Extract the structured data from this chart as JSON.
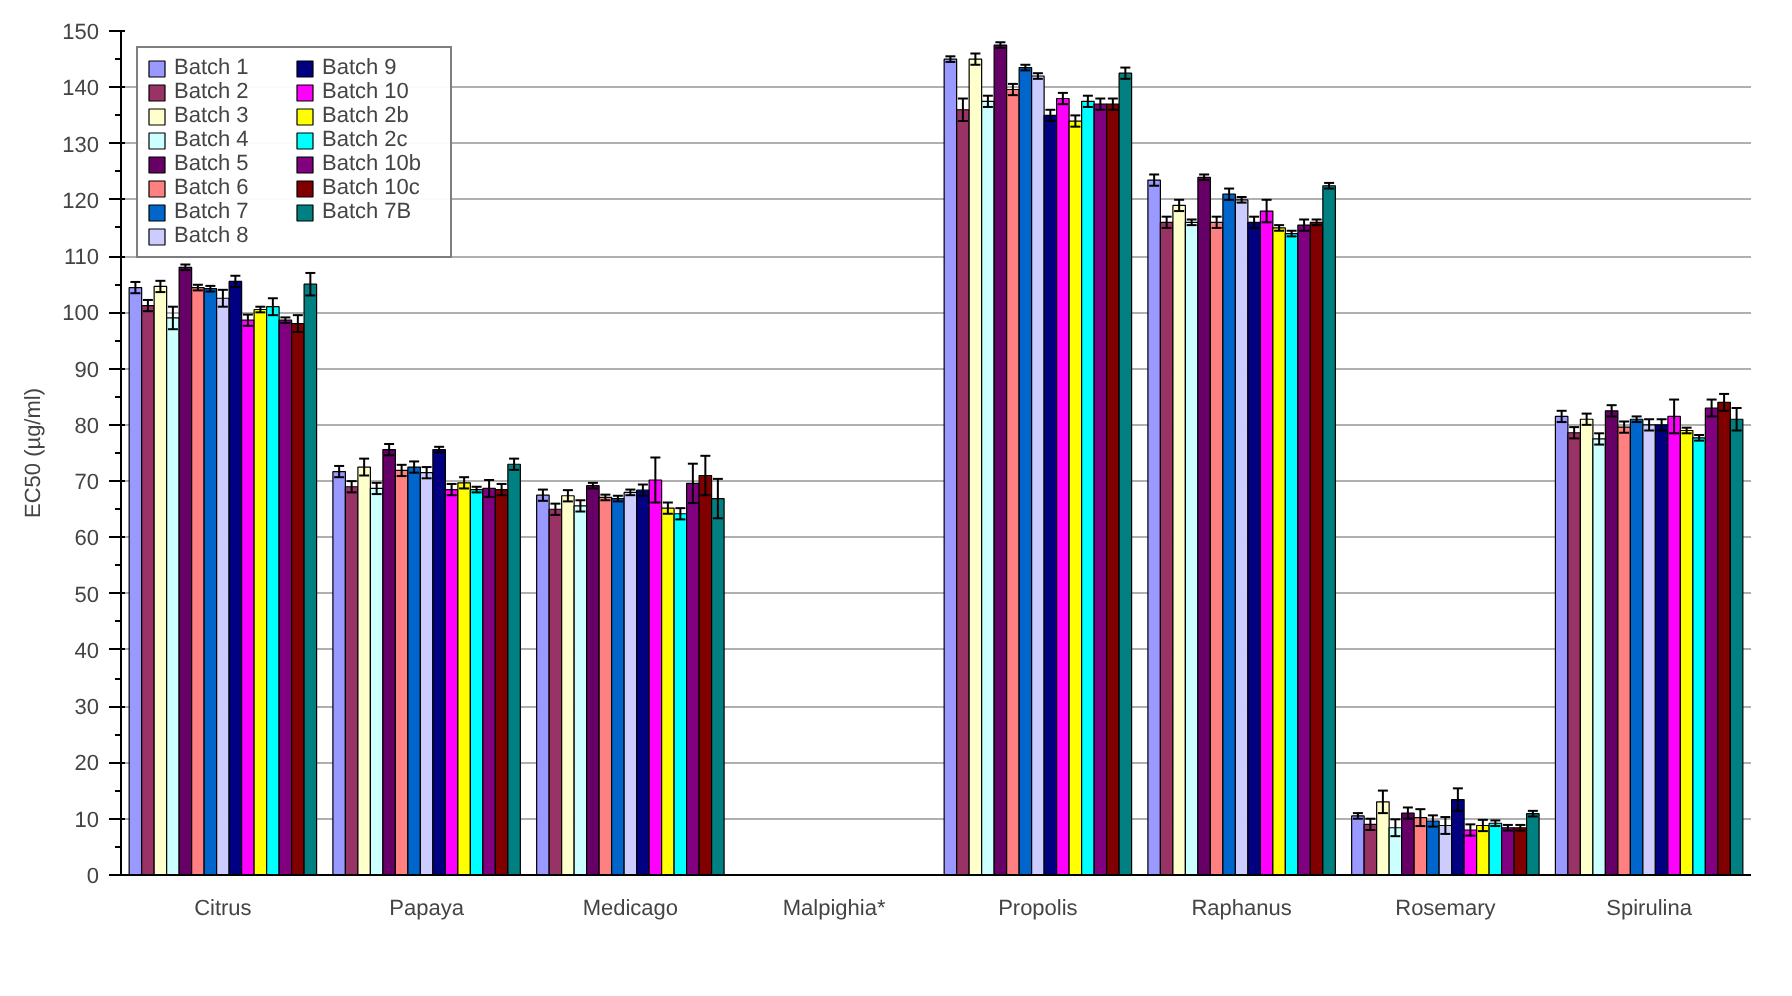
{
  "chart_data": {
    "type": "bar",
    "ylabel": "EC50 (µg/ml)",
    "categories": [
      "Citrus",
      "Papaya",
      "Medicago",
      "Malpighia*",
      "Propolis",
      "Raphanus",
      "Rosemary",
      "Spirulina"
    ],
    "ylim": [
      0,
      150
    ],
    "yticks": [
      0,
      10,
      20,
      30,
      40,
      50,
      60,
      70,
      80,
      90,
      100,
      110,
      120,
      130,
      140,
      150
    ],
    "grid": "y",
    "legend": "top left",
    "series": [
      {
        "name": "Batch 1",
        "color": "#9999ff",
        "values": [
          104.4,
          71.7,
          67.5,
          null,
          145,
          123.5,
          10.5,
          81.5
        ],
        "errors": [
          1,
          1,
          1,
          null,
          0.5,
          1,
          0.5,
          1
        ]
      },
      {
        "name": "Batch 2",
        "color": "#993366",
        "values": [
          101.2,
          69,
          65,
          null,
          136,
          116,
          9,
          78.6
        ],
        "errors": [
          1,
          1,
          1,
          null,
          2,
          1,
          1,
          1
        ]
      },
      {
        "name": "Batch 3",
        "color": "#ffffcc",
        "values": [
          104.6,
          72.5,
          67.4,
          null,
          145,
          119,
          13,
          81
        ],
        "errors": [
          1,
          1.5,
          1,
          null,
          1,
          1,
          2,
          1
        ]
      },
      {
        "name": "Batch 4",
        "color": "#ccffff",
        "values": [
          99,
          68.7,
          65.6,
          null,
          137.5,
          116,
          8.4,
          77.5
        ],
        "errors": [
          2,
          1,
          1,
          null,
          1,
          0.5,
          1.5,
          1
        ]
      },
      {
        "name": "Batch 5",
        "color": "#660066",
        "values": [
          108,
          75.6,
          69.2,
          null,
          147.5,
          124,
          11,
          82.5
        ],
        "errors": [
          0.5,
          1,
          0.5,
          null,
          0.5,
          0.5,
          1,
          1
        ]
      },
      {
        "name": "Batch 6",
        "color": "#ff8080",
        "values": [
          104.4,
          71.9,
          67.1,
          null,
          139.6,
          116,
          10.2,
          79.6
        ],
        "errors": [
          0.5,
          1,
          0.5,
          null,
          1,
          1,
          1.5,
          1
        ]
      },
      {
        "name": "Batch 7",
        "color": "#0066cc",
        "values": [
          104.2,
          72.5,
          66.9,
          null,
          143.5,
          121,
          9.6,
          81
        ],
        "errors": [
          0.5,
          1,
          0.5,
          null,
          0.5,
          1,
          1,
          0.5
        ]
      },
      {
        "name": "Batch 8",
        "color": "#ccccff",
        "values": [
          102.5,
          71.5,
          68,
          null,
          142,
          120,
          8.8,
          80
        ],
        "errors": [
          1.5,
          1,
          0.5,
          null,
          0.5,
          0.5,
          1.5,
          1
        ]
      },
      {
        "name": "Batch 9",
        "color": "#000080",
        "values": [
          105.5,
          75.6,
          68.4,
          null,
          135,
          116,
          13.4,
          80
        ],
        "errors": [
          1,
          0.5,
          1,
          null,
          1,
          1,
          2,
          1
        ]
      },
      {
        "name": "Batch 10",
        "color": "#ff00ff",
        "values": [
          98.6,
          68.5,
          70.2,
          null,
          138,
          118,
          8,
          81.5
        ],
        "errors": [
          1,
          1,
          4,
          null,
          1,
          2,
          1,
          3
        ]
      },
      {
        "name": "Batch 2b",
        "color": "#ffff00",
        "values": [
          100.5,
          69.7,
          65.2,
          null,
          134,
          115,
          8.8,
          79
        ],
        "errors": [
          0.5,
          1,
          1,
          null,
          1,
          0.5,
          1,
          0.5
        ]
      },
      {
        "name": "Batch 2c",
        "color": "#00ffff",
        "values": [
          101,
          68.5,
          64.2,
          null,
          137.5,
          114,
          9.2,
          77.7
        ],
        "errors": [
          1.5,
          0.5,
          1,
          null,
          1,
          0.5,
          0.5,
          0.5
        ]
      },
      {
        "name": "Batch 10b",
        "color": "#800080",
        "values": [
          98.6,
          68.7,
          69.6,
          null,
          137,
          115.5,
          8.4,
          83
        ],
        "errors": [
          0.5,
          1.5,
          3.5,
          null,
          1,
          1,
          0.5,
          1.5
        ]
      },
      {
        "name": "Batch 10c",
        "color": "#800000",
        "values": [
          98,
          68.5,
          71,
          null,
          137,
          116,
          8.4,
          84
        ],
        "errors": [
          1.5,
          1,
          3.5,
          null,
          1,
          0.5,
          0.5,
          1.5
        ]
      },
      {
        "name": "Batch 7B",
        "color": "#008080",
        "values": [
          105,
          73,
          66.9,
          null,
          142.5,
          122.5,
          10.9,
          81
        ],
        "errors": [
          2,
          1,
          3.5,
          null,
          1,
          0.5,
          0.5,
          2
        ]
      }
    ]
  }
}
